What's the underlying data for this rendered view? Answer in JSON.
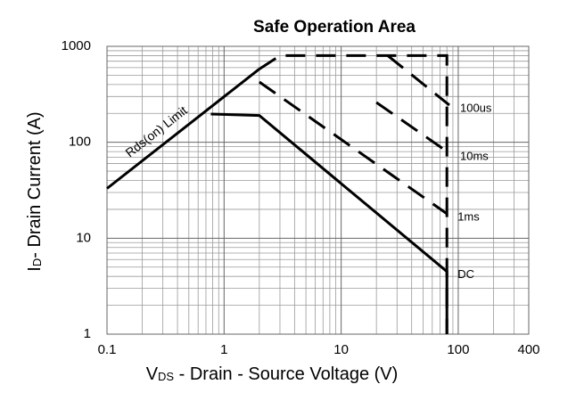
{
  "chart_data": {
    "type": "line",
    "title": "Safe Operation Area",
    "xlabel": {
      "symbol": "V",
      "sub": "DS",
      "text": " - Drain - Source Voltage (V)"
    },
    "ylabel": {
      "symbol": "I",
      "sub": "D",
      "text": "- Drain Current (A)"
    },
    "log_x": true,
    "log_y": true,
    "grid": true,
    "xlim": [
      0.1,
      400
    ],
    "ylim": [
      1,
      1000
    ],
    "xticks": [
      0.1,
      1,
      10,
      100,
      400
    ],
    "yticks": [
      1,
      10,
      100,
      1000
    ],
    "series": [
      {
        "name": "Rds(on) Limit",
        "color": "#000000",
        "style": "solid",
        "x": [
          0.1,
          2
        ],
        "values": [
          33,
          580
        ]
      },
      {
        "color": "#000000",
        "style": "dashed",
        "x": [
          2,
          3,
          80,
          80
        ],
        "values": [
          580,
          800,
          800,
          1
        ]
      },
      {
        "name": "100us",
        "color": "#000000",
        "style": "dashed",
        "x": [
          25,
          84
        ],
        "values": [
          800,
          244
        ]
      },
      {
        "name": "10ms",
        "color": "#000000",
        "style": "dashed",
        "x": [
          20,
          84
        ],
        "values": [
          260,
          77
        ]
      },
      {
        "name": "1ms",
        "color": "#000000",
        "style": "dashed",
        "x": [
          2,
          80
        ],
        "values": [
          425,
          18
        ]
      },
      {
        "name": "DC",
        "color": "#000000",
        "style": "solid",
        "x": [
          0.77,
          2,
          80,
          80
        ],
        "values": [
          197,
          190,
          4.5,
          1
        ]
      }
    ]
  }
}
